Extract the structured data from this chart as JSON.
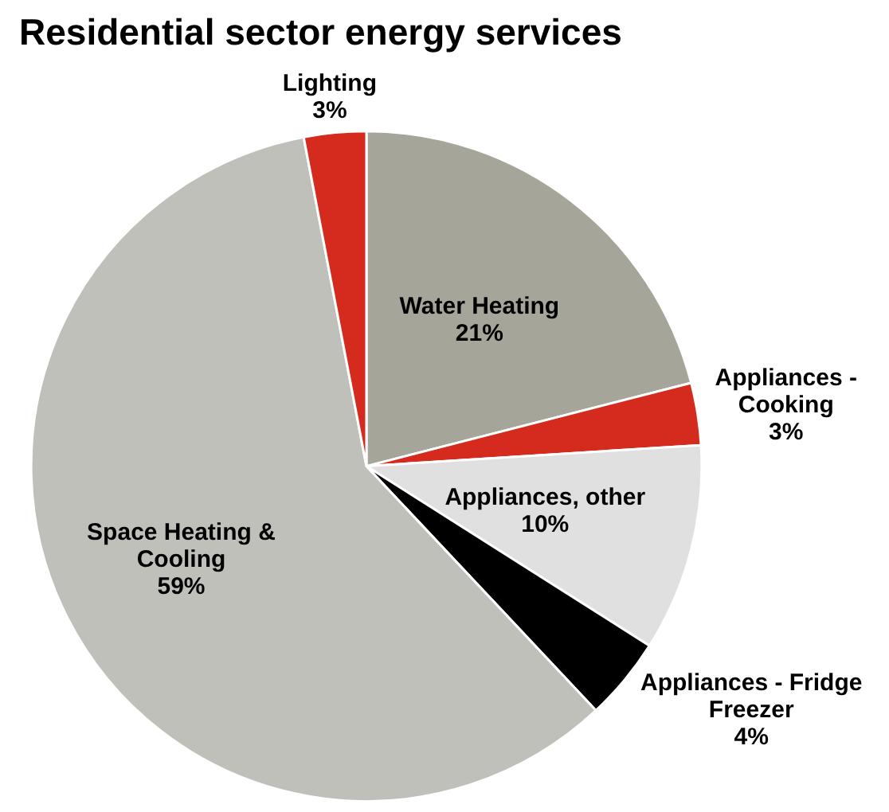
{
  "chart_data": {
    "type": "pie",
    "title": "Residential sector energy services",
    "categories": [
      "Water Heating",
      "Appliances - Cooking",
      "Appliances, other",
      "Appliances - Fridge Freezer",
      "Space Heating & Cooling",
      "Lighting"
    ],
    "values": [
      21,
      3,
      10,
      4,
      59,
      3
    ],
    "colors": [
      "#a6a599",
      "#d52b1e",
      "#e0e0e0",
      "#000000",
      "#c0c0bb",
      "#d52b1e"
    ],
    "value_labels": [
      "21%",
      "3%",
      "10%",
      "4%",
      "59%",
      "3%"
    ],
    "legend": false
  }
}
